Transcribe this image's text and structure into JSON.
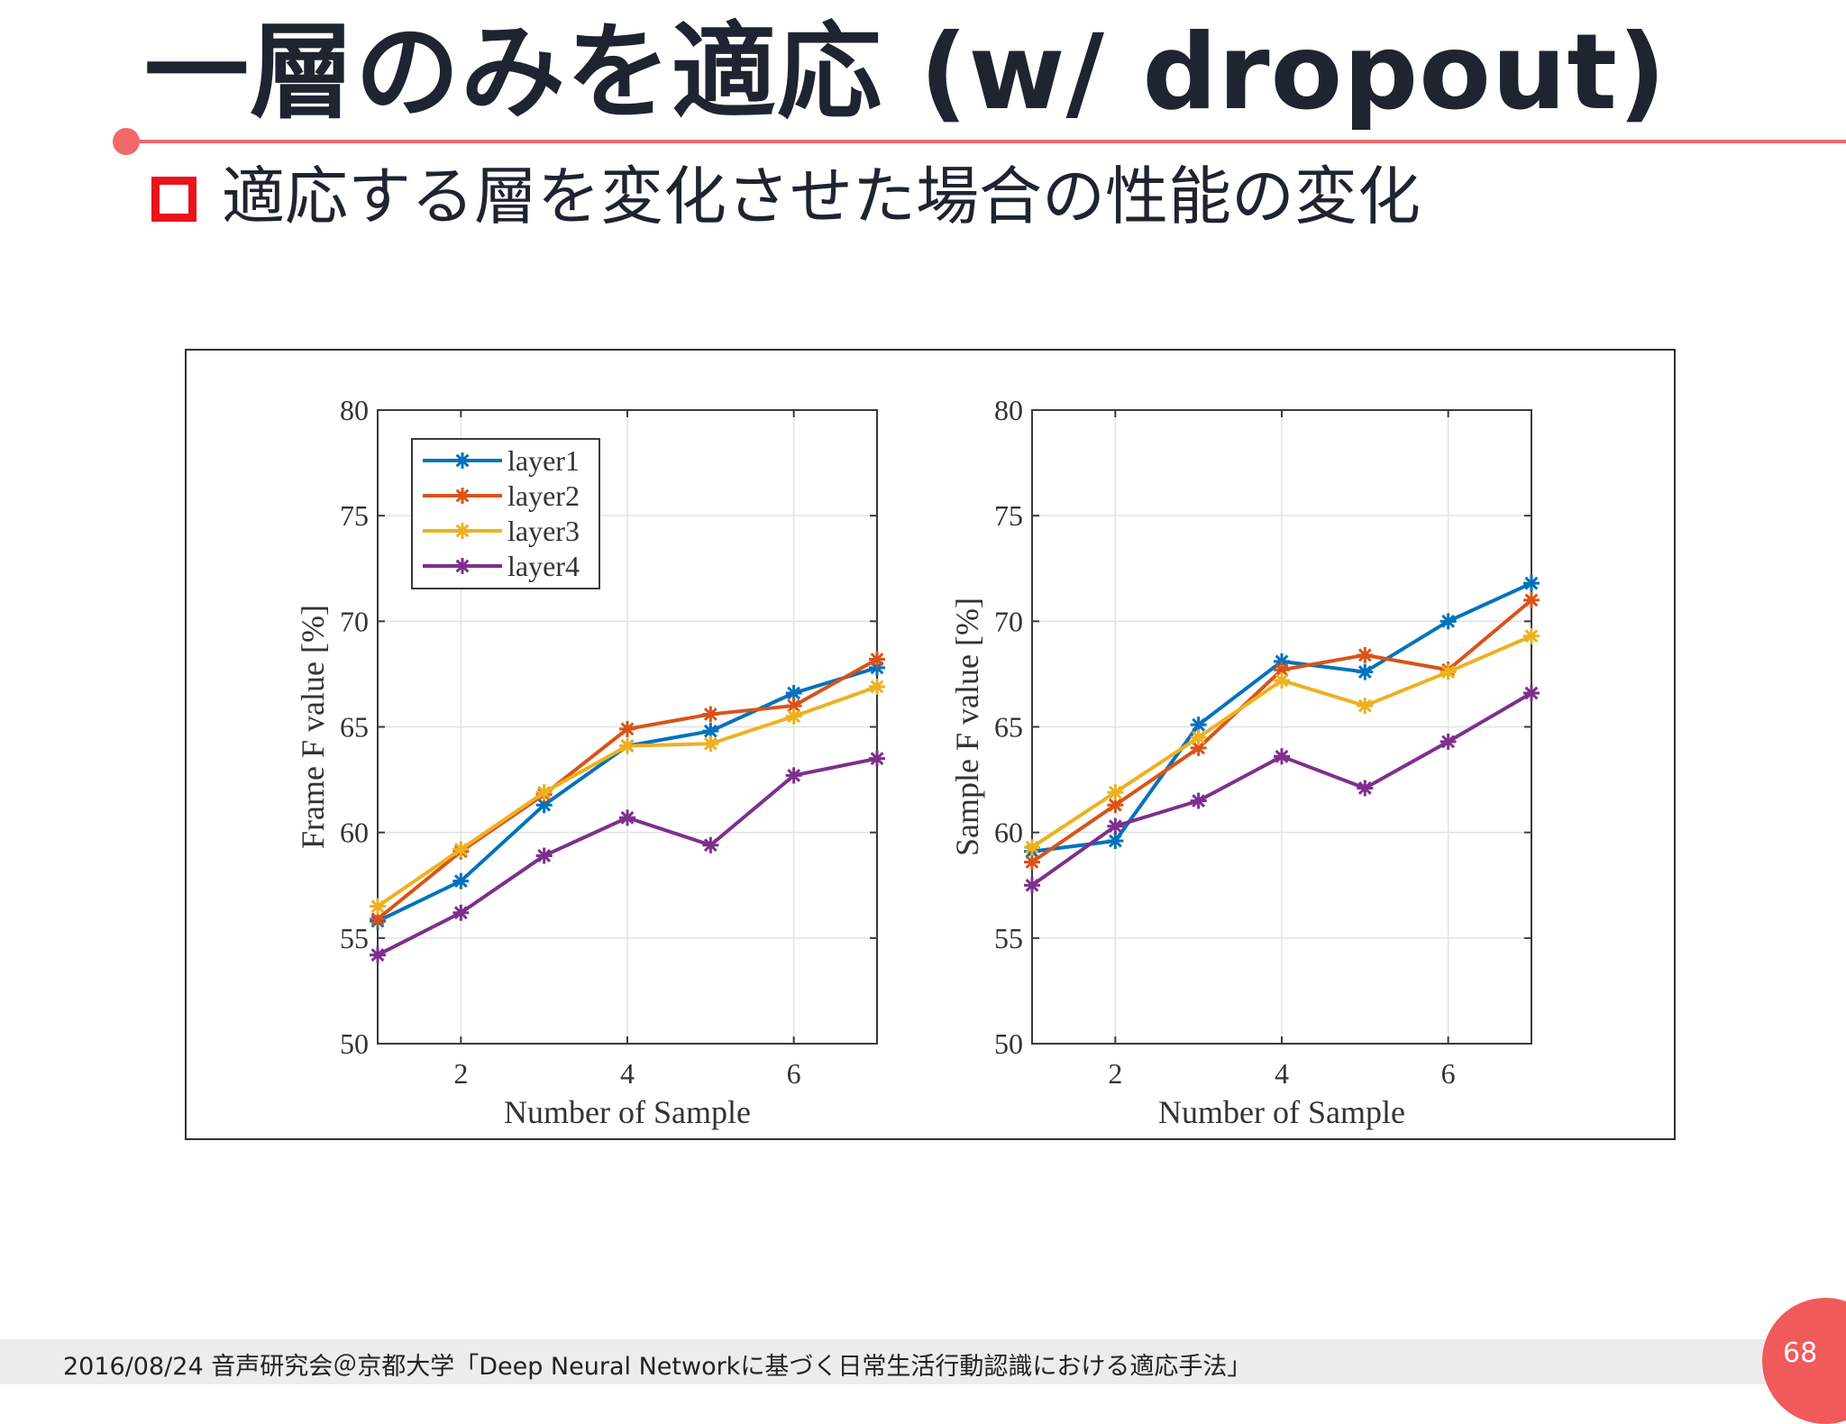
{
  "slide": {
    "title": "一層のみを適応 (w/ dropout)",
    "subtitle": "適応する層を変化させた場合の性能の変化",
    "footer": "2016/08/24 音声研究会＠京都大学「Deep Neural Networkに基づく日常生活行動認識における適応手法」",
    "page_number": "68",
    "accent_color": "#f06a6a",
    "bullet_color": "#e8131b"
  },
  "chart_data": [
    {
      "type": "line",
      "xlabel": "Number of Sample",
      "ylabel": "Frame F value [%]",
      "xlim": [
        1,
        7
      ],
      "ylim": [
        50,
        80
      ],
      "xticks": [
        2,
        4,
        6
      ],
      "yticks": [
        50,
        55,
        60,
        65,
        70,
        75,
        80
      ],
      "grid": true,
      "legend": "top-left",
      "x": [
        1,
        2,
        3,
        4,
        5,
        6,
        7
      ],
      "series": [
        {
          "name": "layer1",
          "color": "#0072bd",
          "values": [
            55.8,
            57.7,
            61.3,
            64.1,
            64.8,
            66.6,
            67.8
          ]
        },
        {
          "name": "layer2",
          "color": "#d95319",
          "values": [
            55.9,
            59.1,
            61.8,
            64.9,
            65.6,
            66.0,
            68.2
          ]
        },
        {
          "name": "layer3",
          "color": "#edb120",
          "values": [
            56.5,
            59.2,
            61.9,
            64.1,
            64.2,
            65.5,
            66.9
          ]
        },
        {
          "name": "layer4",
          "color": "#7e2f8e",
          "values": [
            54.2,
            56.2,
            58.9,
            60.7,
            59.4,
            62.7,
            63.5
          ]
        }
      ]
    },
    {
      "type": "line",
      "xlabel": "Number of Sample",
      "ylabel": "Sample F value [%]",
      "xlim": [
        1,
        7
      ],
      "ylim": [
        50,
        80
      ],
      "xticks": [
        2,
        4,
        6
      ],
      "yticks": [
        50,
        55,
        60,
        65,
        70,
        75,
        80
      ],
      "grid": true,
      "legend": "none",
      "x": [
        1,
        2,
        3,
        4,
        5,
        6,
        7
      ],
      "series": [
        {
          "name": "layer1",
          "color": "#0072bd",
          "values": [
            59.1,
            59.6,
            65.1,
            68.1,
            67.6,
            70.0,
            71.8
          ]
        },
        {
          "name": "layer2",
          "color": "#d95319",
          "values": [
            58.6,
            61.3,
            64.0,
            67.7,
            68.4,
            67.7,
            71.0
          ]
        },
        {
          "name": "layer3",
          "color": "#edb120",
          "values": [
            59.3,
            61.9,
            64.5,
            67.2,
            66.0,
            67.6,
            69.3
          ]
        },
        {
          "name": "layer4",
          "color": "#7e2f8e",
          "values": [
            57.5,
            60.3,
            61.5,
            63.6,
            62.1,
            64.3,
            66.6
          ]
        }
      ]
    }
  ]
}
